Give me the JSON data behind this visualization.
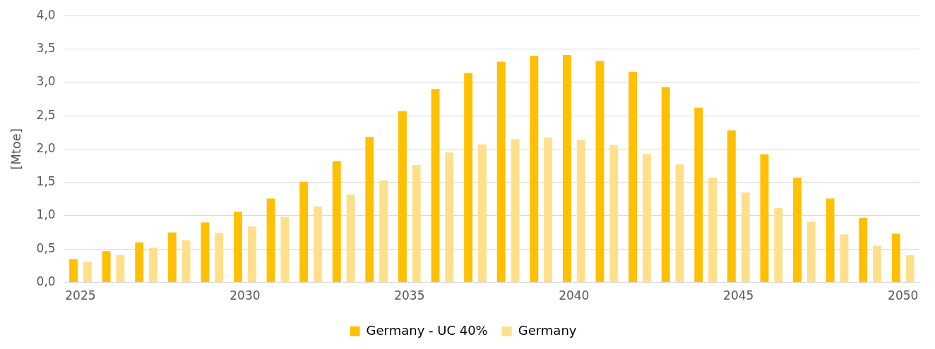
{
  "chart_data": {
    "type": "bar",
    "ylabel": "[Mtoe]",
    "categories": [
      "2025",
      null,
      null,
      null,
      null,
      "2030",
      null,
      null,
      null,
      null,
      "2035",
      null,
      null,
      null,
      null,
      "2040",
      null,
      null,
      null,
      null,
      "2045",
      null,
      null,
      null,
      null,
      "2050"
    ],
    "series": [
      {
        "name": "Germany - UC 40%",
        "color": "#ffc000",
        "values": [
          0.35,
          0.47,
          0.6,
          0.75,
          0.9,
          1.06,
          1.26,
          1.51,
          1.82,
          2.18,
          2.57,
          2.9,
          3.14,
          3.31,
          3.4,
          3.41,
          3.32,
          3.16,
          2.93,
          2.62,
          2.28,
          1.92,
          1.57,
          1.26,
          0.97,
          0.73
        ]
      },
      {
        "name": "Germany",
        "color": "#ffe08a",
        "values": [
          0.31,
          0.41,
          0.52,
          0.63,
          0.74,
          0.84,
          0.98,
          1.14,
          1.32,
          1.53,
          1.76,
          1.95,
          2.07,
          2.15,
          2.17,
          2.14,
          2.06,
          1.93,
          1.77,
          1.57,
          1.35,
          1.12,
          0.91,
          0.72,
          0.55,
          0.41
        ]
      }
    ],
    "ylim": [
      0,
      4
    ],
    "yticks": [
      {
        "value": 0,
        "label": "0,0"
      },
      {
        "value": 0.5,
        "label": "0,5"
      },
      {
        "value": 1,
        "label": "1,0"
      },
      {
        "value": 1.5,
        "label": "1,5"
      },
      {
        "value": 2,
        "label": "2,0"
      },
      {
        "value": 2.5,
        "label": "2,5"
      },
      {
        "value": 3,
        "label": "3,0"
      },
      {
        "value": 3.5,
        "label": "3,5"
      },
      {
        "value": 4,
        "label": "4,0"
      }
    ],
    "grid": "y",
    "legend": "bottom"
  }
}
